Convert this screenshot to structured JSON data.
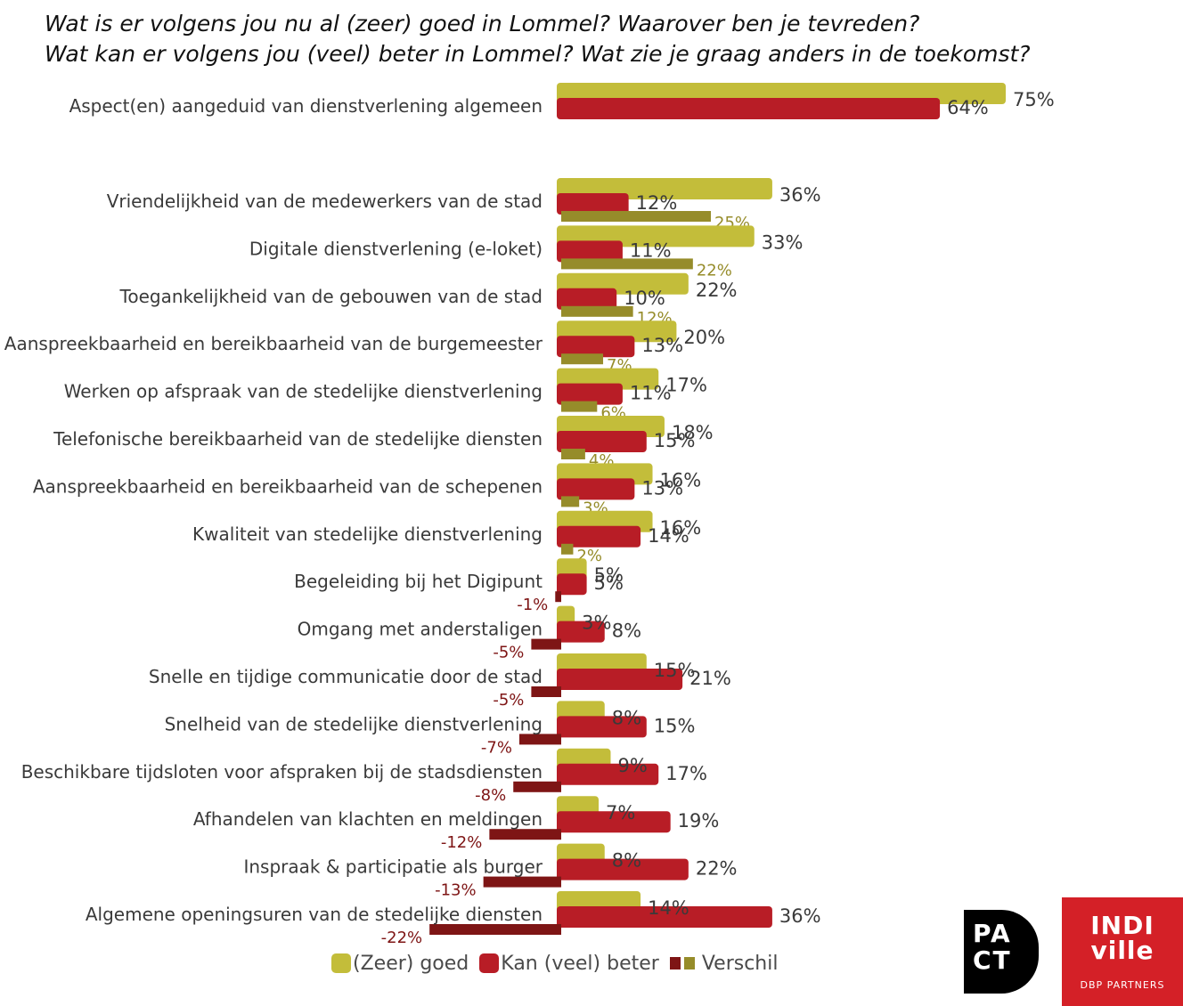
{
  "title": {
    "line1": "Wat is er volgens jou nu al (zeer) goed in Lommel? Waarover ben je tevreden?",
    "line2": "Wat kan er volgens jou (veel) beter in Lommel? Wat zie je graag anders in de toekomst?"
  },
  "chart_data": {
    "type": "bar",
    "orientation": "horizontal",
    "value_unit": "%",
    "categories": [
      "Aspect(en) aangeduid van dienstverlening algemeen",
      "Vriendelijkheid van de medewerkers van de stad",
      "Digitale dienstverlening (e-loket)",
      "Toegankelijkheid van de gebouwen van de stad",
      "Aanspreekbaarheid en bereikbaarheid van de burgemeester",
      "Werken op afspraak van de stedelijke dienstverlening",
      "Telefonische bereikbaarheid van de stedelijke diensten",
      "Aanspreekbaarheid en bereikbaarheid van de schepenen",
      "Kwaliteit van stedelijke dienstverlening",
      "Begeleiding bij het Digipunt",
      "Omgang met anderstaligen",
      "Snelle en tijdige communicatie door de stad",
      "Snelheid van de stedelijke dienstverlening",
      "Beschikbare tijdsloten voor afspraken bij de stadsdiensten",
      "Afhandelen van klachten en meldingen",
      "Inspraak & participatie als burger",
      "Algemene openingsuren van de stedelijke diensten"
    ],
    "series": [
      {
        "name": "(Zeer) goed",
        "color": "#c3bd3a",
        "values": [
          75,
          36,
          33,
          22,
          20,
          17,
          18,
          16,
          16,
          5,
          3,
          15,
          8,
          9,
          7,
          8,
          14
        ]
      },
      {
        "name": "Kan (veel) beter",
        "color": "#b81d26",
        "values": [
          64,
          12,
          11,
          10,
          13,
          11,
          15,
          13,
          14,
          5,
          8,
          21,
          15,
          17,
          19,
          22,
          36
        ]
      },
      {
        "name": "Verschil",
        "positive_color": "#968c2a",
        "negative_color": "#7e1515",
        "values": [
          null,
          25,
          22,
          12,
          7,
          6,
          4,
          3,
          2,
          -1,
          -5,
          -5,
          -7,
          -8,
          -12,
          -13,
          -22
        ]
      }
    ],
    "legend_position": "bottom",
    "grid": false
  },
  "logos": {
    "pact_line1": "PA",
    "pact_line2": "CT",
    "indiville_word_line1": "INDI",
    "indiville_word_line2": "ville",
    "indiville_sub": "DBP PARTNERS"
  }
}
